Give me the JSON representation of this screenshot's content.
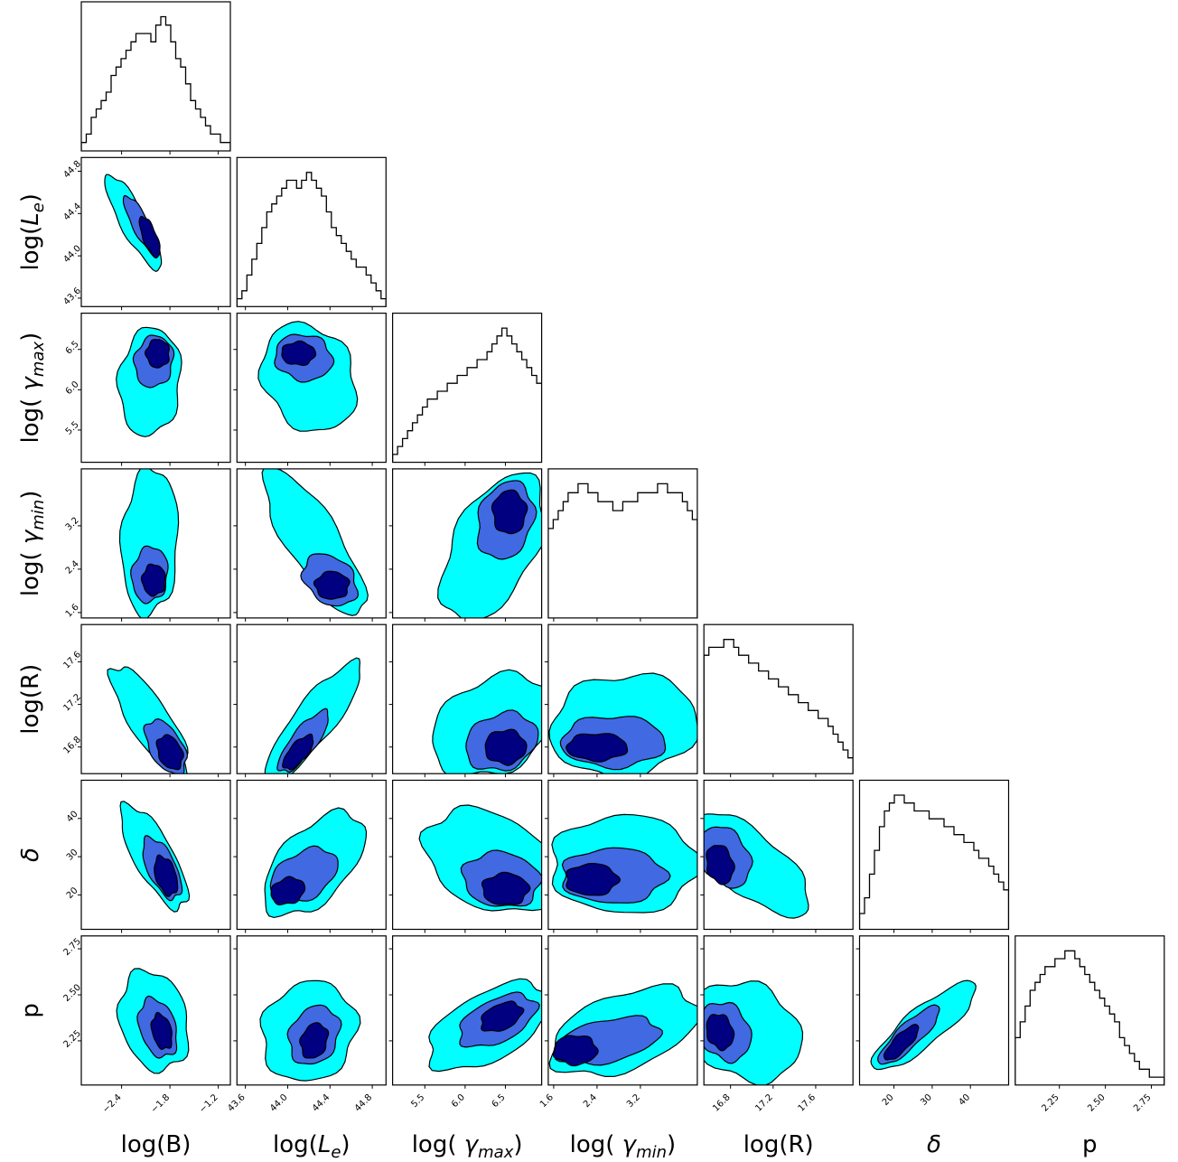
{
  "chart_data": {
    "type": "corner",
    "parameters": [
      "log(B)",
      "log(L_e)",
      "log( γ_max)",
      "log( γ_min)",
      "log(R)",
      "δ",
      "p"
    ],
    "axis_labels": {
      "x": [
        "log(B)",
        "log(L_e)",
        "log( γ_max)",
        "log( γ_min)",
        "log(R)",
        "δ",
        "p"
      ],
      "y": [
        "",
        "log(L_e)",
        "log( γ_max)",
        "log( γ_min)",
        "log(R)",
        "δ",
        "p"
      ]
    },
    "ranges": [
      [
        -2.9,
        -1.05
      ],
      [
        43.52,
        44.93
      ],
      [
        5.1,
        6.95
      ],
      [
        1.5,
        4.25
      ],
      [
        16.55,
        17.95
      ],
      [
        11,
        50
      ],
      [
        2.01,
        2.82
      ]
    ],
    "ticks": [
      [
        "−2.4",
        "−1.8",
        "−1.2"
      ],
      [
        "43.6",
        "44.0",
        "44.4",
        "44.8"
      ],
      [
        "5.5",
        "6.0",
        "6.5"
      ],
      [
        "1.6",
        "2.4",
        "3.2"
      ],
      [
        "16.8",
        "17.2",
        "17.6"
      ],
      [
        "20",
        "30",
        "40"
      ],
      [
        "2.25",
        "2.50",
        "2.75"
      ]
    ],
    "tick_values": [
      [
        -2.4,
        -1.8,
        -1.2
      ],
      [
        43.6,
        44.0,
        44.4,
        44.8
      ],
      [
        5.5,
        6.0,
        6.5
      ],
      [
        1.6,
        2.4,
        3.2
      ],
      [
        16.8,
        17.2,
        17.6
      ],
      [
        20,
        30,
        40
      ],
      [
        2.25,
        2.5,
        2.75
      ]
    ],
    "histograms": [
      [
        1,
        2,
        4,
        5,
        6,
        7,
        9,
        10,
        11,
        12,
        13,
        14,
        14,
        14,
        13,
        15,
        16,
        15,
        13,
        11,
        10,
        8,
        6,
        5,
        4,
        3,
        2,
        2,
        1,
        1
      ],
      [
        1,
        2,
        4,
        6,
        8,
        10,
        12,
        13,
        14,
        15,
        16,
        16,
        15,
        16,
        17,
        16,
        15,
        14,
        12,
        10,
        9,
        8,
        7,
        6,
        5,
        5,
        4,
        3,
        2,
        1
      ],
      [
        1,
        2,
        3,
        4,
        5,
        6,
        7,
        8,
        8,
        9,
        9,
        10,
        10,
        11,
        11,
        12,
        12,
        13,
        13,
        14,
        15,
        16,
        17,
        16,
        15,
        14,
        13,
        12,
        11,
        10
      ],
      [
        10,
        11,
        12,
        13,
        14,
        14,
        15,
        15,
        14,
        14,
        13,
        13,
        13,
        12,
        12,
        13,
        13,
        13,
        14,
        14,
        14,
        14,
        15,
        15,
        14,
        14,
        14,
        13,
        12,
        11
      ],
      [
        15,
        16,
        16,
        16,
        17,
        17,
        16,
        15,
        15,
        14,
        14,
        13,
        13,
        12,
        12,
        11,
        11,
        10,
        10,
        9,
        9,
        8,
        8,
        7,
        7,
        6,
        5,
        4,
        3,
        2
      ],
      [
        2,
        4,
        7,
        10,
        13,
        15,
        16,
        17,
        17,
        16,
        16,
        15,
        15,
        15,
        14,
        14,
        14,
        13,
        13,
        12,
        12,
        11,
        11,
        10,
        9,
        9,
        8,
        7,
        6,
        5
      ],
      [
        6,
        8,
        10,
        12,
        13,
        14,
        15,
        15,
        16,
        16,
        17,
        17,
        16,
        15,
        14,
        13,
        12,
        11,
        10,
        9,
        8,
        6,
        5,
        4,
        3,
        2,
        2,
        1,
        1,
        1
      ]
    ],
    "contour_levels": [
      "outer",
      "middle",
      "inner"
    ],
    "contour_colors": {
      "outer": "#00FFFF",
      "middle": "#4169E1",
      "inner": "#000080",
      "line": "#000000"
    },
    "contours": {
      "1-0": [
        {
          "center": [
            -2.25,
            44.32
          ],
          "sd": [
            0.22,
            0.28
          ],
          "rho": -0.85
        },
        {
          "center": [
            -2.15,
            44.28
          ],
          "sd": [
            0.14,
            0.18
          ],
          "rho": -0.85
        },
        {
          "center": [
            -2.05,
            44.18
          ],
          "sd": [
            0.08,
            0.12
          ],
          "rho": -0.7
        }
      ],
      "2-0": [
        {
          "center": [
            -2.05,
            6.1
          ],
          "sd": [
            0.24,
            0.42
          ],
          "rho": 0.1
        },
        {
          "center": [
            -2.0,
            6.35
          ],
          "sd": [
            0.15,
            0.2
          ],
          "rho": 0.1
        },
        {
          "center": [
            -1.95,
            6.45
          ],
          "sd": [
            0.09,
            0.11
          ],
          "rho": 0.0
        }
      ],
      "2-1": [
        {
          "center": [
            44.2,
            6.15
          ],
          "sd": [
            0.28,
            0.42
          ],
          "rho": -0.2
        },
        {
          "center": [
            44.15,
            6.4
          ],
          "sd": [
            0.17,
            0.18
          ],
          "rho": -0.1
        },
        {
          "center": [
            44.1,
            6.45
          ],
          "sd": [
            0.1,
            0.09
          ],
          "rho": 0.0
        }
      ],
      "3-0": [
        {
          "center": [
            -2.05,
            2.9
          ],
          "sd": [
            0.22,
            0.85
          ],
          "rho": 0.1
        },
        {
          "center": [
            -2.05,
            2.3
          ],
          "sd": [
            0.14,
            0.32
          ],
          "rho": 0.1
        },
        {
          "center": [
            -2.0,
            2.2
          ],
          "sd": [
            0.09,
            0.18
          ],
          "rho": 0.0
        }
      ],
      "3-1": [
        {
          "center": [
            44.25,
            2.9
          ],
          "sd": [
            0.3,
            0.85
          ],
          "rho": -0.8
        },
        {
          "center": [
            44.4,
            2.2
          ],
          "sd": [
            0.16,
            0.3
          ],
          "rho": -0.3
        },
        {
          "center": [
            44.42,
            2.1
          ],
          "sd": [
            0.1,
            0.16
          ],
          "rho": 0.0
        }
      ],
      "3-2": [
        {
          "center": [
            6.35,
            2.8
          ],
          "sd": [
            0.4,
            0.85
          ],
          "rho": 0.5
        },
        {
          "center": [
            6.5,
            3.3
          ],
          "sd": [
            0.22,
            0.45
          ],
          "rho": 0.2
        },
        {
          "center": [
            6.55,
            3.45
          ],
          "sd": [
            0.13,
            0.25
          ],
          "rho": 0.0
        }
      ],
      "4-0": [
        {
          "center": [
            -2.05,
            17.05
          ],
          "sd": [
            0.3,
            0.32
          ],
          "rho": -0.8
        },
        {
          "center": [
            -1.85,
            16.8
          ],
          "sd": [
            0.16,
            0.16
          ],
          "rho": -0.5
        },
        {
          "center": [
            -1.8,
            16.75
          ],
          "sd": [
            0.1,
            0.1
          ],
          "rho": -0.3
        }
      ],
      "4-1": [
        {
          "center": [
            44.25,
            17.05
          ],
          "sd": [
            0.28,
            0.34
          ],
          "rho": 0.85
        },
        {
          "center": [
            44.15,
            16.85
          ],
          "sd": [
            0.15,
            0.18
          ],
          "rho": 0.8
        },
        {
          "center": [
            44.1,
            16.75
          ],
          "sd": [
            0.09,
            0.1
          ],
          "rho": 0.7
        }
      ],
      "4-2": [
        {
          "center": [
            6.35,
            17.0
          ],
          "sd": [
            0.48,
            0.3
          ],
          "rho": 0.3
        },
        {
          "center": [
            6.45,
            16.85
          ],
          "sd": [
            0.28,
            0.17
          ],
          "rho": 0.2
        },
        {
          "center": [
            6.5,
            16.8
          ],
          "sd": [
            0.16,
            0.1
          ],
          "rho": 0.0
        }
      ],
      "4-3": [
        {
          "center": [
            2.9,
            17.0
          ],
          "sd": [
            0.85,
            0.3
          ],
          "rho": 0.1
        },
        {
          "center": [
            2.7,
            16.85
          ],
          "sd": [
            0.6,
            0.15
          ],
          "rho": 0.0
        },
        {
          "center": [
            2.4,
            16.8
          ],
          "sd": [
            0.35,
            0.08
          ],
          "rho": 0.0
        }
      ],
      "5-0": [
        {
          "center": [
            -2.0,
            30.0
          ],
          "sd": [
            0.26,
            8.5
          ],
          "rho": -0.75
        },
        {
          "center": [
            -1.9,
            27.0
          ],
          "sd": [
            0.15,
            5.0
          ],
          "rho": -0.6
        },
        {
          "center": [
            -1.85,
            25.0
          ],
          "sd": [
            0.09,
            3.2
          ],
          "rho": -0.4
        }
      ],
      "5-1": [
        {
          "center": [
            44.25,
            28.0
          ],
          "sd": [
            0.3,
            8.5
          ],
          "rho": 0.55
        },
        {
          "center": [
            44.15,
            25.0
          ],
          "sd": [
            0.2,
            4.5
          ],
          "rho": 0.4
        },
        {
          "center": [
            44.0,
            21.0
          ],
          "sd": [
            0.1,
            2.2
          ],
          "rho": 0.2
        }
      ],
      "5-2": [
        {
          "center": [
            6.3,
            29.0
          ],
          "sd": [
            0.5,
            8.5
          ],
          "rho": -0.3
        },
        {
          "center": [
            6.45,
            24.0
          ],
          "sd": [
            0.3,
            4.5
          ],
          "rho": -0.1
        },
        {
          "center": [
            6.5,
            21.5
          ],
          "sd": [
            0.18,
            2.6
          ],
          "rho": 0.0
        }
      ],
      "5-3": [
        {
          "center": [
            2.9,
            28.0
          ],
          "sd": [
            0.85,
            8.0
          ],
          "rho": 0.0
        },
        {
          "center": [
            2.7,
            25.0
          ],
          "sd": [
            0.6,
            4.5
          ],
          "rho": 0.0
        },
        {
          "center": [
            2.3,
            24.0
          ],
          "sd": [
            0.3,
            2.6
          ],
          "rho": 0.0
        }
      ],
      "5-4": [
        {
          "center": [
            17.0,
            28.0
          ],
          "sd": [
            0.34,
            8.5
          ],
          "rho": -0.7
        },
        {
          "center": [
            16.75,
            30.0
          ],
          "sd": [
            0.15,
            5.0
          ],
          "rho": -0.3
        },
        {
          "center": [
            16.7,
            28.0
          ],
          "sd": [
            0.08,
            3.2
          ],
          "rho": -0.2
        }
      ],
      "6-0": [
        {
          "center": [
            -2.0,
            2.36
          ],
          "sd": [
            0.27,
            0.17
          ],
          "rho": -0.2
        },
        {
          "center": [
            -1.95,
            2.32
          ],
          "sd": [
            0.15,
            0.1
          ],
          "rho": -0.3
        },
        {
          "center": [
            -1.9,
            2.3
          ],
          "sd": [
            0.08,
            0.06
          ],
          "rho": -0.3
        }
      ],
      "6-1": [
        {
          "center": [
            44.2,
            2.3
          ],
          "sd": [
            0.28,
            0.17
          ],
          "rho": 0.1
        },
        {
          "center": [
            44.25,
            2.28
          ],
          "sd": [
            0.15,
            0.1
          ],
          "rho": 0.2
        },
        {
          "center": [
            44.25,
            2.25
          ],
          "sd": [
            0.08,
            0.06
          ],
          "rho": 0.2
        }
      ],
      "6-2": [
        {
          "center": [
            6.3,
            2.33
          ],
          "sd": [
            0.48,
            0.15
          ],
          "rho": 0.55
        },
        {
          "center": [
            6.4,
            2.36
          ],
          "sd": [
            0.3,
            0.09
          ],
          "rho": 0.5
        },
        {
          "center": [
            6.45,
            2.38
          ],
          "sd": [
            0.16,
            0.05
          ],
          "rho": 0.4
        }
      ],
      "6-3": [
        {
          "center": [
            2.9,
            2.3
          ],
          "sd": [
            0.85,
            0.15
          ],
          "rho": 0.45
        },
        {
          "center": [
            2.6,
            2.25
          ],
          "sd": [
            0.6,
            0.08
          ],
          "rho": 0.4
        },
        {
          "center": [
            2.0,
            2.2
          ],
          "sd": [
            0.25,
            0.05
          ],
          "rho": 0.0
        }
      ],
      "6-4": [
        {
          "center": [
            16.95,
            2.3
          ],
          "sd": [
            0.32,
            0.17
          ],
          "rho": -0.2
        },
        {
          "center": [
            16.75,
            2.3
          ],
          "sd": [
            0.15,
            0.1
          ],
          "rho": -0.2
        },
        {
          "center": [
            16.7,
            2.3
          ],
          "sd": [
            0.08,
            0.06
          ],
          "rho": -0.2
        }
      ],
      "6-5": [
        {
          "center": [
            28.0,
            2.33
          ],
          "sd": [
            8.5,
            0.15
          ],
          "rho": 0.85
        },
        {
          "center": [
            24.0,
            2.28
          ],
          "sd": [
            5.0,
            0.1
          ],
          "rho": 0.85
        },
        {
          "center": [
            22.0,
            2.24
          ],
          "sd": [
            2.8,
            0.06
          ],
          "rho": 0.8
        }
      ]
    }
  }
}
